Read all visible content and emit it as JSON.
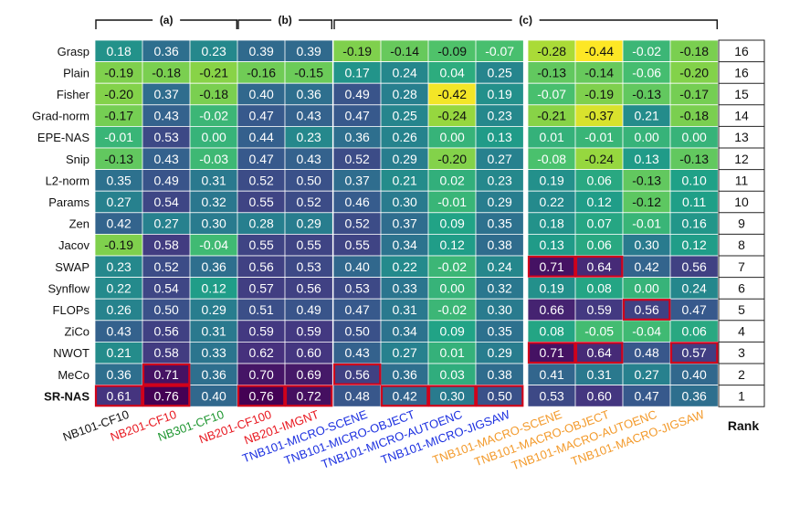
{
  "chart_data": {
    "type": "heatmap",
    "groups": [
      {
        "label": "(a)",
        "col_start": 0,
        "col_end": 2
      },
      {
        "label": "(b)",
        "col_start": 3,
        "col_end": 4
      },
      {
        "label": "(c)",
        "col_start": 5,
        "col_end": 12
      }
    ],
    "columns": [
      {
        "label": "NB101-CF10",
        "color": "#111111"
      },
      {
        "label": "NB201-CF10",
        "color": "#e8171f"
      },
      {
        "label": "NB301-CF10",
        "color": "#1e9630"
      },
      {
        "label": "NB201-CF100",
        "color": "#e8171f"
      },
      {
        "label": "NB201-IMGNT",
        "color": "#e8171f"
      },
      {
        "label": "TNB101-MICRO-SCENE",
        "color": "#1b2fe0"
      },
      {
        "label": "TNB101-MICRO-OBJECT",
        "color": "#1b2fe0"
      },
      {
        "label": "TNB101-MICRO-AUTOENC",
        "color": "#1b2fe0"
      },
      {
        "label": "TNB101-MICRO-JIGSAW",
        "color": "#1b2fe0"
      },
      {
        "label": "TNB101-MACRO-SCENE",
        "color": "#f39a2b"
      },
      {
        "label": "TNB101-MACRO-OBJECT",
        "color": "#f39a2b"
      },
      {
        "label": "TNB101-MACRO-AUTOENC",
        "color": "#f39a2b"
      },
      {
        "label": "TNB101-MACRO-JIGSAW",
        "color": "#f39a2b"
      }
    ],
    "rows": [
      "Grasp",
      "Plain",
      "Fisher",
      "Grad-norm",
      "EPE-NAS",
      "Snip",
      "L2-norm",
      "Params",
      "Zen",
      "Jacov",
      "SWAP",
      "Synflow",
      "FLOPs",
      "ZiCo",
      "NWOT",
      "MeCo",
      "SR-NAS"
    ],
    "bold_row": "SR-NAS",
    "values": [
      [
        0.18,
        0.36,
        0.23,
        0.39,
        0.39,
        -0.19,
        -0.14,
        -0.09,
        -0.07,
        -0.28,
        -0.44,
        -0.02,
        -0.18
      ],
      [
        -0.19,
        -0.18,
        -0.21,
        -0.16,
        -0.15,
        0.17,
        0.24,
        0.04,
        0.25,
        -0.13,
        -0.14,
        -0.06,
        -0.2
      ],
      [
        -0.2,
        0.37,
        -0.18,
        0.4,
        0.36,
        0.49,
        0.28,
        -0.42,
        0.19,
        -0.07,
        -0.19,
        -0.13,
        -0.17
      ],
      [
        -0.17,
        0.43,
        -0.02,
        0.47,
        0.43,
        0.47,
        0.25,
        -0.24,
        0.23,
        -0.21,
        -0.37,
        0.21,
        -0.18
      ],
      [
        -0.01,
        0.53,
        0.0,
        0.44,
        0.23,
        0.36,
        0.26,
        0.0,
        0.13,
        0.01,
        -0.01,
        0.0,
        0.0
      ],
      [
        -0.13,
        0.43,
        -0.03,
        0.47,
        0.43,
        0.52,
        0.29,
        -0.2,
        0.27,
        -0.08,
        -0.24,
        0.13,
        -0.13
      ],
      [
        0.35,
        0.49,
        0.31,
        0.52,
        0.5,
        0.37,
        0.21,
        0.02,
        0.23,
        0.19,
        0.06,
        -0.13,
        0.1
      ],
      [
        0.27,
        0.54,
        0.32,
        0.55,
        0.52,
        0.46,
        0.3,
        -0.01,
        0.29,
        0.22,
        0.12,
        -0.12,
        0.11
      ],
      [
        0.42,
        0.27,
        0.3,
        0.28,
        0.29,
        0.52,
        0.37,
        0.09,
        0.35,
        0.18,
        0.07,
        -0.01,
        0.16
      ],
      [
        -0.19,
        0.58,
        -0.04,
        0.55,
        0.55,
        0.55,
        0.34,
        0.12,
        0.38,
        0.13,
        0.06,
        0.3,
        0.12
      ],
      [
        0.23,
        0.52,
        0.36,
        0.56,
        0.53,
        0.4,
        0.22,
        -0.02,
        0.24,
        0.71,
        0.64,
        0.42,
        0.56
      ],
      [
        0.22,
        0.54,
        0.12,
        0.57,
        0.56,
        0.53,
        0.33,
        0.0,
        0.32,
        0.19,
        0.08,
        0.0,
        0.24
      ],
      [
        0.26,
        0.5,
        0.29,
        0.51,
        0.49,
        0.47,
        0.31,
        -0.02,
        0.3,
        0.66,
        0.59,
        0.56,
        0.47
      ],
      [
        0.43,
        0.56,
        0.31,
        0.59,
        0.59,
        0.5,
        0.34,
        0.09,
        0.35,
        0.08,
        -0.05,
        -0.04,
        0.06
      ],
      [
        0.21,
        0.58,
        0.33,
        0.62,
        0.6,
        0.43,
        0.27,
        0.01,
        0.29,
        0.71,
        0.64,
        0.48,
        0.57
      ],
      [
        0.36,
        0.71,
        0.36,
        0.7,
        0.69,
        0.56,
        0.36,
        0.03,
        0.38,
        0.41,
        0.31,
        0.27,
        0.4
      ],
      [
        0.61,
        0.76,
        0.4,
        0.76,
        0.72,
        0.48,
        0.42,
        0.3,
        0.5,
        0.53,
        0.6,
        0.47,
        0.36
      ]
    ],
    "highlighted": [
      [
        10,
        9
      ],
      [
        10,
        10
      ],
      [
        12,
        11
      ],
      [
        14,
        9
      ],
      [
        14,
        10
      ],
      [
        14,
        12
      ],
      [
        15,
        1
      ],
      [
        15,
        5
      ],
      [
        16,
        0
      ],
      [
        16,
        1
      ],
      [
        16,
        3
      ],
      [
        16,
        4
      ],
      [
        16,
        6
      ],
      [
        16,
        7
      ],
      [
        16,
        8
      ]
    ],
    "rank_title": "Rank",
    "ranks": [
      "16",
      "16",
      "15",
      "14",
      "13",
      "12",
      "11",
      "10",
      "9",
      "8",
      "7",
      "6",
      "5",
      "4",
      "3",
      "2",
      "1"
    ],
    "colorscale": {
      "name": "viridis-like",
      "min": -0.44,
      "max": 0.76,
      "reversed": true
    }
  }
}
